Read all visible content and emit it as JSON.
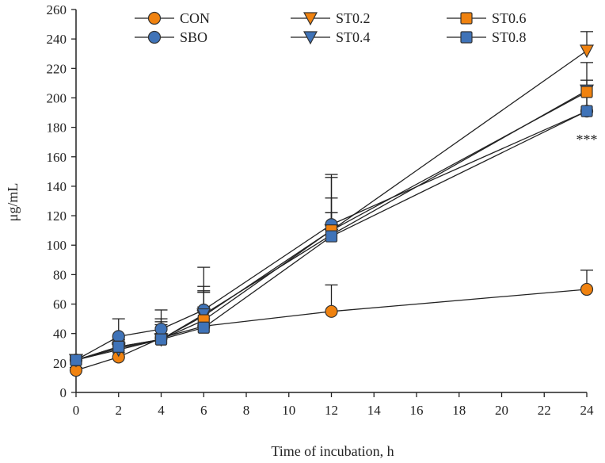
{
  "chart_data": {
    "type": "line",
    "title": "",
    "xlabel": "Time of incubation, h",
    "ylabel": "μg/mL",
    "xlim": [
      0,
      24
    ],
    "ylim": [
      0,
      260
    ],
    "xticks": [
      0,
      2,
      4,
      6,
      8,
      10,
      12,
      14,
      16,
      18,
      20,
      22,
      24
    ],
    "yticks": [
      0,
      20,
      40,
      60,
      80,
      100,
      120,
      140,
      160,
      180,
      200,
      220,
      240,
      260
    ],
    "x": [
      0,
      2,
      4,
      6,
      12,
      24
    ],
    "grid": false,
    "legend_position": "top-left",
    "annotation": "***",
    "series": [
      {
        "name": "CON",
        "marker": "circle",
        "color": "#f0820f",
        "values": [
          15,
          24,
          37,
          45,
          55,
          70
        ],
        "err": [
          2,
          3,
          3,
          5,
          18,
          13
        ]
      },
      {
        "name": "SBO",
        "marker": "circle",
        "color": "#3f73b8",
        "values": [
          22,
          38,
          43,
          56,
          114,
          191
        ],
        "err": [
          2,
          12,
          13,
          29,
          34,
          17
        ]
      },
      {
        "name": "ST0.2",
        "marker": "triangle-down",
        "color": "#f0820f",
        "values": [
          22,
          30,
          36,
          52,
          110,
          232
        ],
        "err": [
          2,
          6,
          14,
          20,
          22,
          13
        ]
      },
      {
        "name": "ST0.4",
        "marker": "triangle-down",
        "color": "#3f73b8",
        "values": [
          22,
          29,
          36,
          53,
          107,
          205
        ],
        "err": [
          2,
          5,
          12,
          16,
          39,
          19
        ]
      },
      {
        "name": "ST0.6",
        "marker": "square",
        "color": "#f0820f",
        "values": [
          22,
          31,
          36,
          49,
          110,
          204
        ],
        "err": [
          2,
          5,
          10,
          19,
          12,
          8
        ]
      },
      {
        "name": "ST0.8",
        "marker": "square",
        "color": "#3f73b8",
        "values": [
          22,
          31,
          36,
          44,
          106,
          191
        ],
        "err": [
          2,
          4,
          8,
          14,
          16,
          17
        ]
      }
    ]
  }
}
